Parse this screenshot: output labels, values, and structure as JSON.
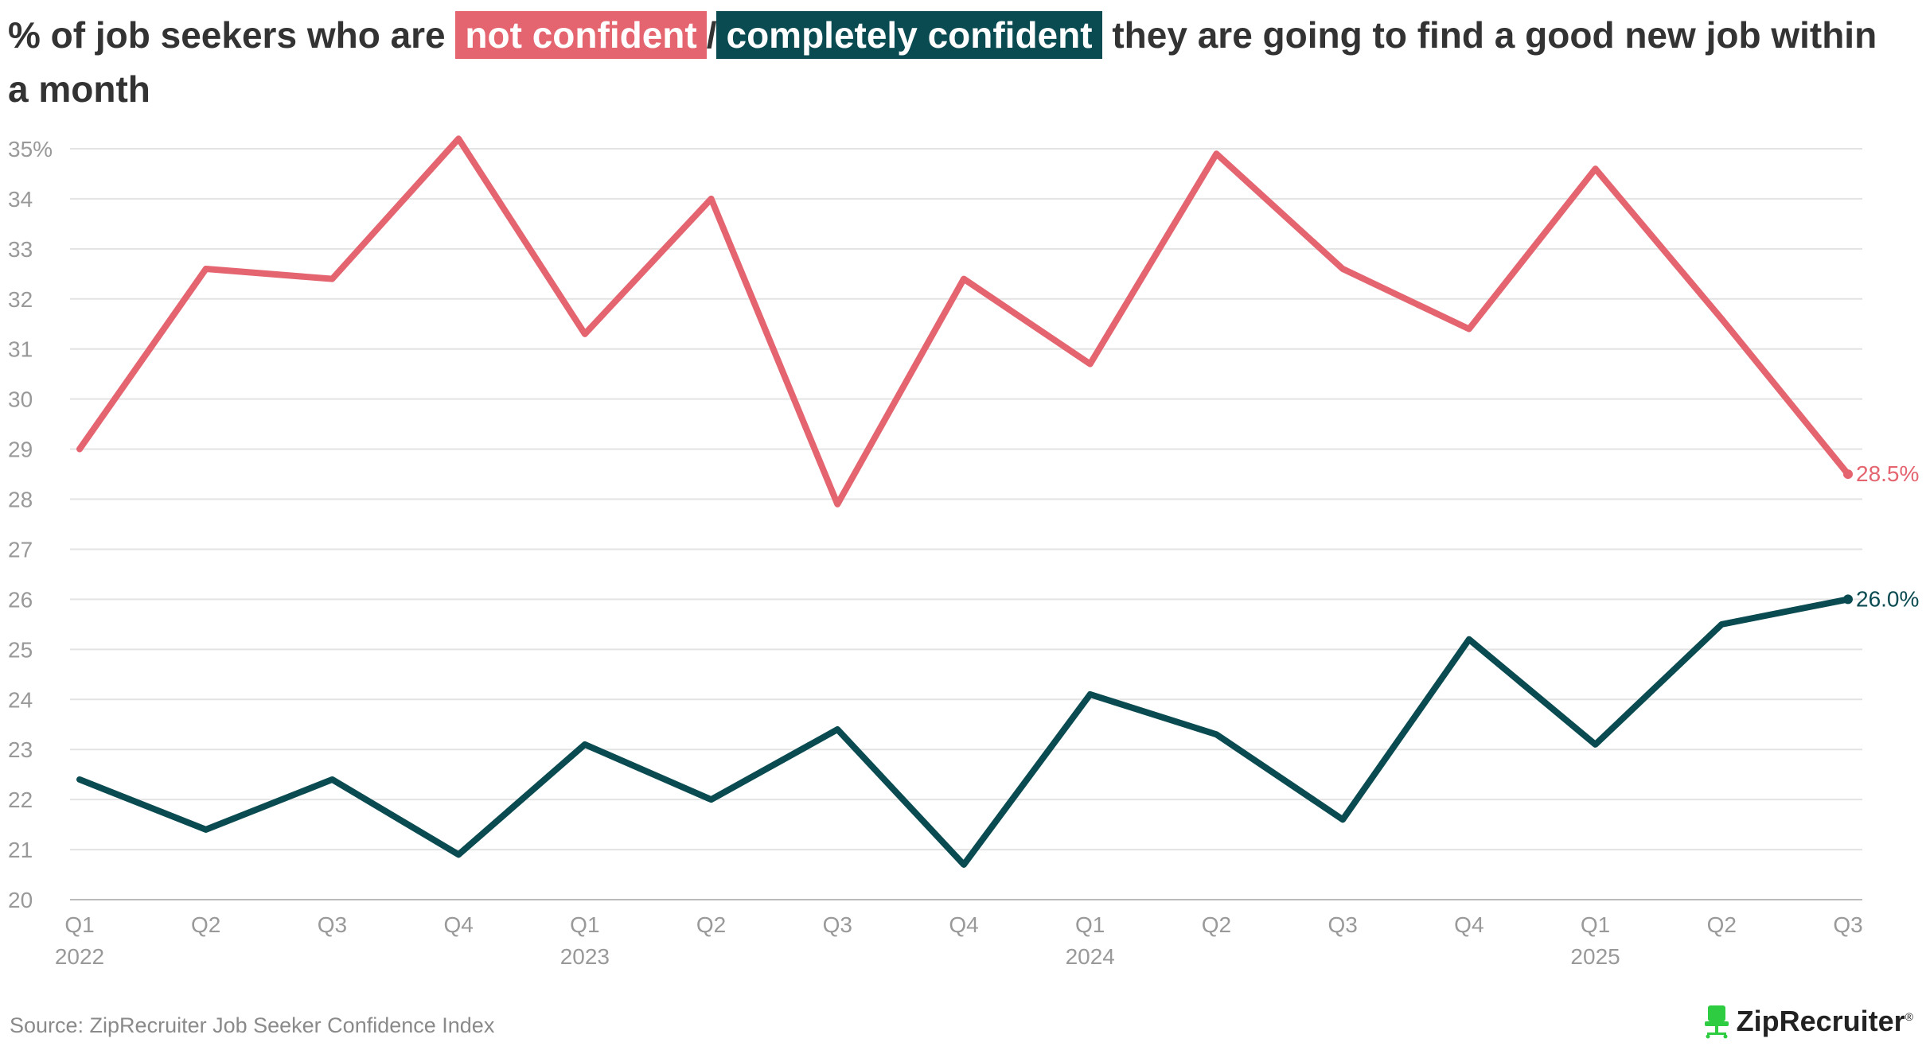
{
  "title": {
    "prefix": "% of job seekers who are ",
    "highlight1": "not confident",
    "separator": "/",
    "highlight2": "completely confident",
    "suffix": " they are going to find a good new job within a month"
  },
  "colors": {
    "not_confident": "#e4646f",
    "completely_confident": "#0a4a51"
  },
  "chart_data": {
    "type": "line",
    "categories": [
      "Q1 2022",
      "Q2 2022",
      "Q3 2022",
      "Q4 2022",
      "Q1 2023",
      "Q2 2023",
      "Q3 2023",
      "Q4 2023",
      "Q1 2024",
      "Q2 2024",
      "Q3 2024",
      "Q4 2024",
      "Q1 2025",
      "Q2 2025",
      "Q3 2025"
    ],
    "x_tick_quarters": [
      "Q1",
      "Q2",
      "Q3",
      "Q4",
      "Q1",
      "Q2",
      "Q3",
      "Q4",
      "Q1",
      "Q2",
      "Q3",
      "Q4",
      "Q1",
      "Q2",
      "Q3"
    ],
    "x_tick_years": [
      "2022",
      "",
      "",
      "",
      "2023",
      "",
      "",
      "",
      "2024",
      "",
      "",
      "",
      "2025",
      "",
      ""
    ],
    "y_ticks": [
      "35%",
      "34",
      "33",
      "32",
      "31",
      "30",
      "29",
      "28",
      "27",
      "26",
      "25",
      "24",
      "23",
      "22",
      "21",
      "20"
    ],
    "ylim": [
      20,
      35
    ],
    "grid": true,
    "series": [
      {
        "key": "not_confident",
        "values": [
          29.0,
          32.6,
          32.4,
          35.2,
          31.3,
          34.0,
          27.9,
          32.4,
          30.7,
          34.9,
          32.6,
          31.4,
          34.6,
          31.6,
          28.5
        ],
        "end_label": "28.5%"
      },
      {
        "key": "completely_confident",
        "values": [
          22.4,
          21.4,
          22.4,
          20.9,
          23.1,
          22.0,
          23.4,
          20.7,
          24.1,
          23.3,
          21.6,
          25.2,
          23.1,
          25.5,
          26.0
        ],
        "end_label": "26.0%"
      }
    ]
  },
  "source": "Source: ZipRecruiter Job Seeker Confidence Index",
  "logo": {
    "text": "ZipRecruiter",
    "mark": "®",
    "icon": "chair-icon",
    "icon_color": "#2ecc40"
  }
}
